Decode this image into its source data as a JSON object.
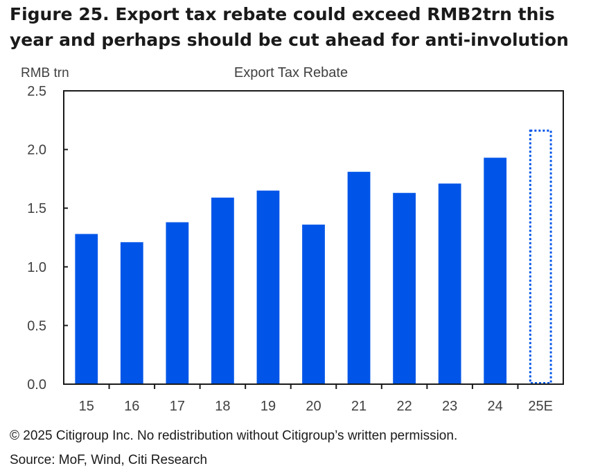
{
  "figure_title": "Figure 25. Export tax rebate could exceed RMB2trn this year and perhaps should be cut ahead for anti-involution",
  "copyright": "© 2025 Citigroup Inc. No redistribution without Citigroup’s written permission.",
  "source": "Source: MoF, Wind, Citi Research",
  "chart_data": {
    "type": "bar",
    "title": "Export Tax Rebate",
    "ylabel": "RMB trn",
    "xlabel": "",
    "categories": [
      "15",
      "16",
      "17",
      "18",
      "19",
      "20",
      "21",
      "22",
      "23",
      "24",
      "25E"
    ],
    "values": [
      1.28,
      1.21,
      1.38,
      1.59,
      1.65,
      1.36,
      1.81,
      1.63,
      1.71,
      1.93,
      2.17
    ],
    "estimated": [
      false,
      false,
      false,
      false,
      false,
      false,
      false,
      false,
      false,
      false,
      true
    ],
    "ylim": [
      0,
      2.5
    ],
    "yticks": [
      "0.0",
      "0.5",
      "1.0",
      "1.5",
      "2.0",
      "2.5"
    ],
    "grid": false,
    "bar_color": "#0055E8"
  }
}
